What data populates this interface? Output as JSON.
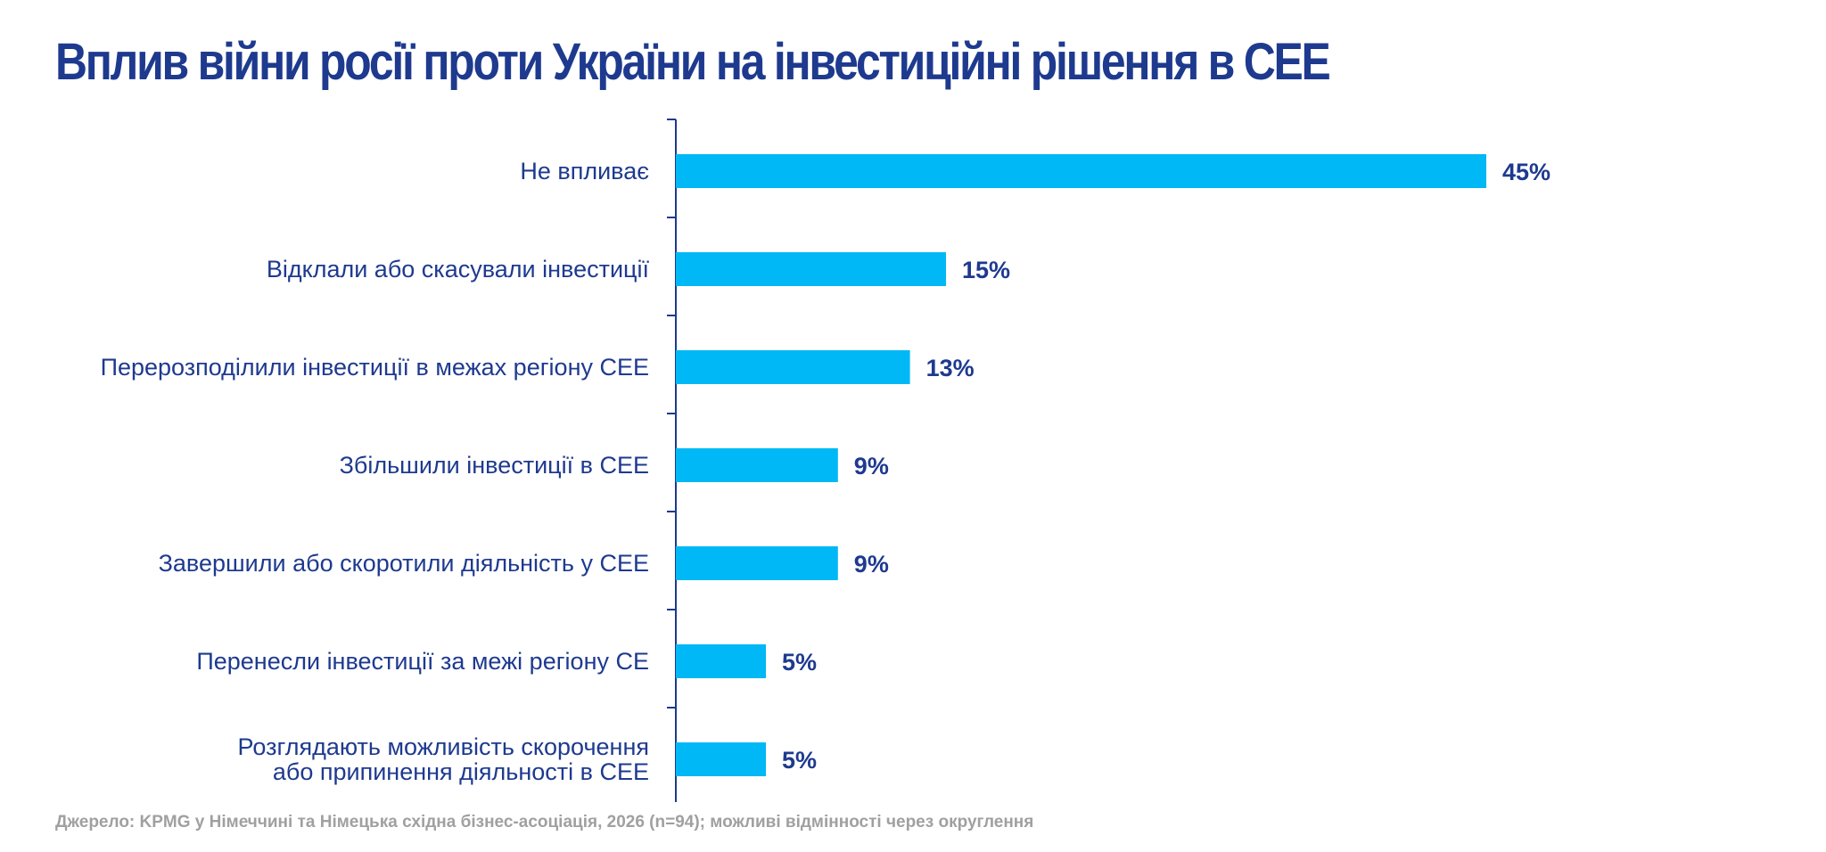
{
  "title": "Вплив війни росії проти України на інвестиційні рішення в CEE",
  "source": "Джерело: KPMG у Німеччині та Німецька східна бізнес-асоціація, 2026 (n=94); можливі відмінності через округлення",
  "colors": {
    "bar": "#00b8f5",
    "text": "#1e3a8f",
    "axis": "#1e3a8f",
    "source": "#a0a0a0"
  },
  "chart_data": {
    "type": "bar",
    "orientation": "horizontal",
    "categories": [
      [
        "Не впливає"
      ],
      [
        "Відклали або скасували інвестиції"
      ],
      [
        "Перерозподілили інвестиції в межах регіону CEE"
      ],
      [
        "Збільшили інвестиції в CEE"
      ],
      [
        "Завершили або скоротили діяльність у CEE"
      ],
      [
        "Перенесли інвестиції за межі регіону CE"
      ],
      [
        "Розглядають можливість скорочення",
        "або припинення діяльності в CEE"
      ]
    ],
    "values": [
      45,
      15,
      13,
      9,
      9,
      5,
      5
    ],
    "value_labels": [
      "45%",
      "15%",
      "13%",
      "9%",
      "9%",
      "5%",
      "5%"
    ],
    "unit": "%",
    "xlim": [
      0,
      100
    ],
    "grid": false,
    "legend": "none"
  }
}
